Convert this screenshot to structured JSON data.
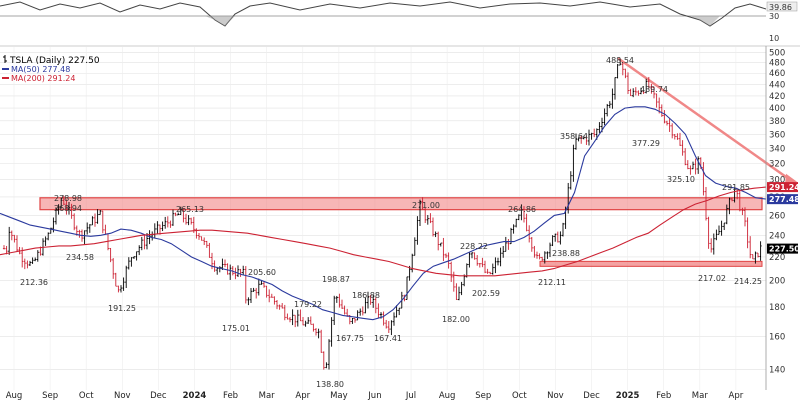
{
  "chart_data": {
    "type": "line",
    "legend": {
      "items": [
        {
          "label": "TSLA (Daily) 227.50",
          "color": "#000000",
          "marker": "bar"
        },
        {
          "label": "MA(50) 277.48",
          "color": "#2b3a9e",
          "marker": "line"
        },
        {
          "label": "MA(200) 291.24",
          "color": "#cc2233",
          "marker": "line"
        }
      ],
      "placement": "top-left"
    },
    "x_ticks": [
      "Aug",
      "Sep",
      "Oct",
      "Nov",
      "Dec",
      "2024",
      "Feb",
      "Mar",
      "Apr",
      "May",
      "Jun",
      "Jul",
      "Aug",
      "Sep",
      "Oct",
      "Nov",
      "Dec",
      "2025",
      "Feb",
      "Mar",
      "Apr"
    ],
    "y_ticks": [
      140,
      160,
      180,
      200,
      220,
      240,
      260,
      280,
      300,
      320,
      340,
      360,
      380,
      400,
      420,
      440,
      460,
      480,
      500
    ],
    "ylim": [
      130,
      505
    ],
    "y_scale": "log",
    "right_axis_labels": [
      {
        "value": 291.24,
        "text": "291.24",
        "color": "#cc2233"
      },
      {
        "value": 277.48,
        "text": "277.48",
        "color": "#2b3a9e"
      },
      {
        "value": 227.5,
        "text": "227.50",
        "color": "#000000"
      }
    ],
    "indicator_panel": {
      "y_ticks": [
        30,
        10
      ],
      "readout": "39.86"
    },
    "annotations": [
      {
        "text": "278.98",
        "x": "Sep",
        "y": 278.98
      },
      {
        "text": "268.94",
        "x": "Sep",
        "y": 268.94
      },
      {
        "text": "265.13",
        "x": "Dec",
        "y": 265.13
      },
      {
        "text": "234.58",
        "x": "Sep",
        "y": 234.58
      },
      {
        "text": "212.36",
        "x": "Aug",
        "y": 212.36
      },
      {
        "text": "191.25",
        "x": "Nov",
        "y": 191.25
      },
      {
        "text": "205.60",
        "x": "Feb",
        "y": 205.6
      },
      {
        "text": "175.01",
        "x": "Feb",
        "y": 175.01
      },
      {
        "text": "179.22",
        "x": "Apr",
        "y": 179.22
      },
      {
        "text": "198.87",
        "x": "May",
        "y": 198.87
      },
      {
        "text": "138.80",
        "x": "Apr",
        "y": 138.8
      },
      {
        "text": "186.88",
        "x": "Jun",
        "y": 186.88
      },
      {
        "text": "167.75",
        "x": "May",
        "y": 167.75
      },
      {
        "text": "167.41",
        "x": "Jun",
        "y": 167.41
      },
      {
        "text": "271.00",
        "x": "Jul",
        "y": 271.0
      },
      {
        "text": "228.22",
        "x": "Aug",
        "y": 228.22
      },
      {
        "text": "182.00",
        "x": "Aug",
        "y": 182.0
      },
      {
        "text": "202.59",
        "x": "Aug",
        "y": 202.59
      },
      {
        "text": "264.86",
        "x": "Sep",
        "y": 264.86
      },
      {
        "text": "212.11",
        "x": "Oct",
        "y": 212.11
      },
      {
        "text": "238.88",
        "x": "Oct",
        "y": 238.88
      },
      {
        "text": "358.64",
        "x": "Nov",
        "y": 358.64
      },
      {
        "text": "488.54",
        "x": "Dec",
        "y": 488.54
      },
      {
        "text": "439.74",
        "x": "Dec",
        "y": 439.74
      },
      {
        "text": "377.29",
        "x": "2025",
        "y": 377.29
      },
      {
        "text": "325.10",
        "x": "Feb",
        "y": 325.1
      },
      {
        "text": "291.85",
        "x": "Mar",
        "y": 291.85
      },
      {
        "text": "217.02",
        "x": "Mar",
        "y": 217.02
      },
      {
        "text": "214.25",
        "x": "Apr",
        "y": 214.25
      }
    ],
    "resistance_band": [
      266,
      279
    ],
    "support_line": 214,
    "trendline": {
      "from": 488.54,
      "to": 300
    },
    "ma50": [
      262,
      258,
      254,
      250,
      248,
      246,
      244,
      242,
      240,
      239,
      240,
      242,
      246,
      245,
      242,
      238,
      236,
      232,
      226,
      220,
      216,
      212,
      210,
      208,
      205,
      203,
      200,
      197,
      192,
      188,
      185,
      182,
      178,
      176,
      174,
      173,
      172,
      171,
      173,
      178,
      186,
      196,
      206,
      212,
      215,
      218,
      222,
      226,
      230,
      232,
      234,
      234,
      238,
      244,
      252,
      260,
      262,
      285,
      330,
      350,
      372,
      390,
      400,
      402,
      402,
      398,
      390,
      376,
      360,
      330,
      305,
      296,
      292,
      290,
      285,
      279,
      277.48
    ],
    "ma200": [
      222,
      224,
      226,
      228,
      229,
      230,
      230,
      231,
      232,
      234,
      236,
      238,
      240,
      241,
      242,
      243,
      244,
      245,
      245,
      244,
      243,
      242,
      240,
      238,
      236,
      234,
      232,
      230,
      228,
      225,
      222,
      220,
      218,
      216,
      213,
      210,
      208,
      206,
      205,
      204,
      204,
      204,
      204,
      205,
      206,
      207,
      208,
      210,
      213,
      216,
      220,
      224,
      228,
      233,
      238,
      242,
      250,
      258,
      266,
      272,
      276,
      281,
      285,
      288,
      290,
      291.24
    ]
  }
}
